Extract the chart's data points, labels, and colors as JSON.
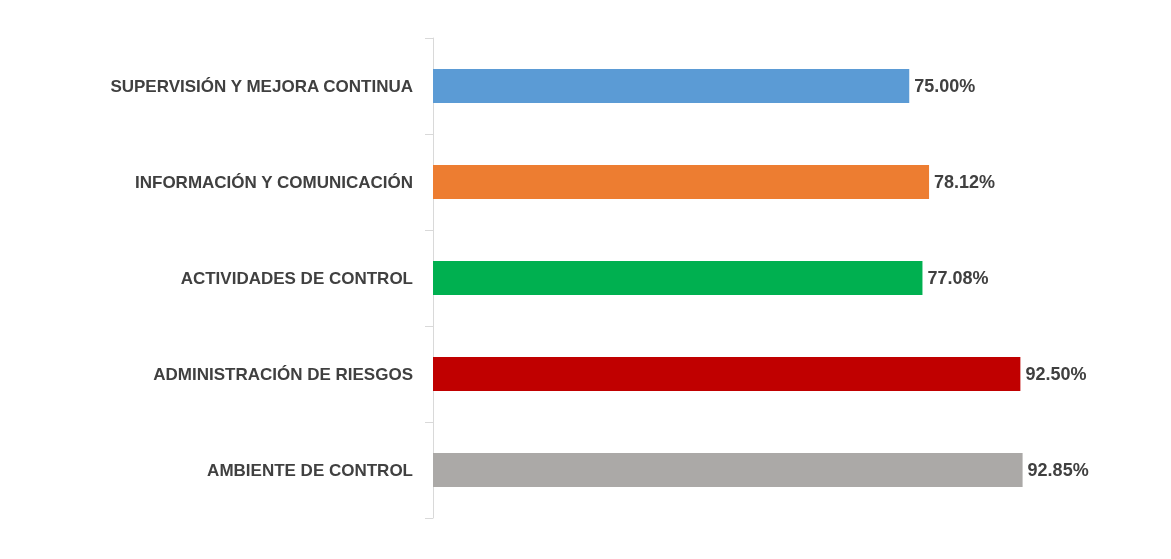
{
  "chart_data": {
    "type": "bar",
    "orientation": "horizontal",
    "categories": [
      "SUPERVISIÓN Y MEJORA CONTINUA",
      "INFORMACIÓN Y COMUNICACIÓN",
      "ACTIVIDADES DE CONTROL",
      "ADMINISTRACIÓN DE RIESGOS",
      "AMBIENTE DE CONTROL"
    ],
    "values": [
      75.0,
      78.12,
      77.08,
      92.5,
      92.85
    ],
    "value_labels": [
      "75.00%",
      "78.12%",
      "77.08%",
      "92.50%",
      "92.85%"
    ],
    "colors": [
      "#5b9bd5",
      "#ed7d31",
      "#00b050",
      "#c00000",
      "#aba9a7"
    ]
  }
}
